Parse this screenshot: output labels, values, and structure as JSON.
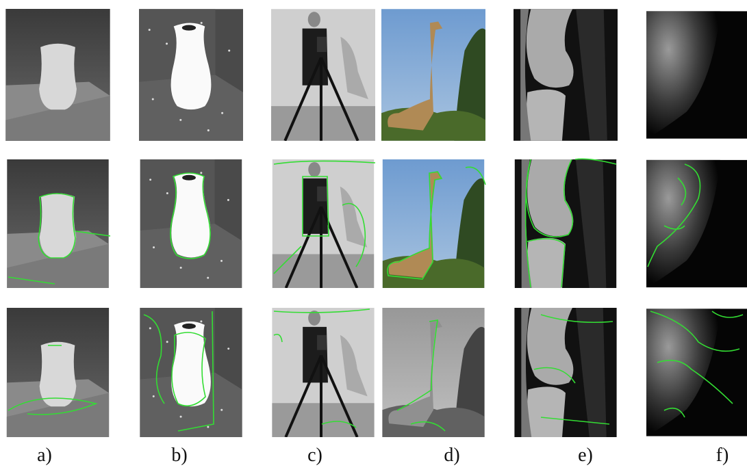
{
  "labels": [
    "a)",
    "b)",
    "c)",
    "d)",
    "e)",
    "f)"
  ]
}
